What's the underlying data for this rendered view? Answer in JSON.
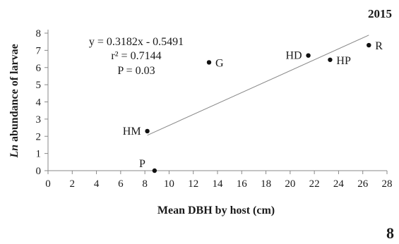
{
  "chart_data": {
    "type": "scatter",
    "title": "",
    "year_label": "2015",
    "panel_number": "8",
    "xlabel": "Mean DBH by host (cm)",
    "ylabel_italic": "Ln",
    "ylabel_rest": " abundance of larvae",
    "xlim": [
      0,
      28
    ],
    "ylim": [
      0,
      8
    ],
    "xticks": [
      0,
      2,
      4,
      6,
      8,
      10,
      12,
      14,
      16,
      18,
      20,
      22,
      24,
      26,
      28
    ],
    "yticks": [
      0,
      1,
      2,
      3,
      4,
      5,
      6,
      7,
      8
    ],
    "points": [
      {
        "label": "P",
        "x": 8.8,
        "y": 0.0
      },
      {
        "label": "HM",
        "x": 8.2,
        "y": 2.3
      },
      {
        "label": "G",
        "x": 13.3,
        "y": 6.3
      },
      {
        "label": "HD",
        "x": 21.5,
        "y": 6.7
      },
      {
        "label": "HP",
        "x": 23.3,
        "y": 6.45
      },
      {
        "label": "R",
        "x": 26.5,
        "y": 7.3
      }
    ],
    "trendline": {
      "slope": 0.3182,
      "intercept": -0.5491,
      "x_range": [
        8.2,
        26.5
      ]
    },
    "annotations": {
      "equation": "y = 0.3182x - 0.5491",
      "r_squared": "r² = 0.7144",
      "p_value": "P = 0.03"
    },
    "grid": false,
    "legend": "none",
    "colors": {
      "marker": "#111111",
      "trendline": "#888888",
      "axis": "#888888",
      "text": "#1a1a1a"
    }
  }
}
